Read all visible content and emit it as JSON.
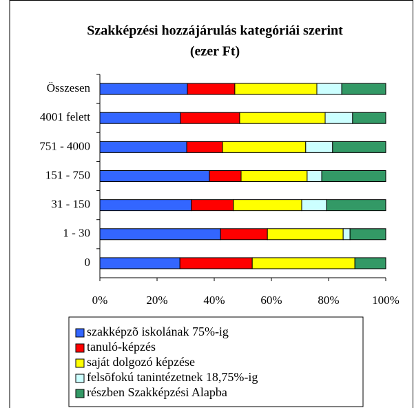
{
  "chart_data": {
    "type": "stacked_bar_horizontal",
    "title": "Szakképzési hozzájárulás kategóriái szerint",
    "subtitle": "(ezer Ft)",
    "categories": [
      "Összesen",
      "4001 felett",
      "751 - 4000",
      "151 - 750",
      "31 - 150",
      "1 - 30",
      "0"
    ],
    "series": [
      {
        "name": "szakképzõ iskolának 75%-ig",
        "color": "#3366ff",
        "values": [
          30.6,
          28.2,
          30.4,
          38.3,
          32.0,
          42.2,
          28.0
        ]
      },
      {
        "name": "tanuló-képzés",
        "color": "#ff0000",
        "values": [
          16.6,
          20.7,
          12.5,
          11.1,
          14.7,
          16.4,
          25.3
        ]
      },
      {
        "name": "saját dolgozó képzése",
        "color": "#ffff00",
        "values": [
          28.7,
          29.9,
          29.1,
          23.1,
          23.9,
          26.5,
          35.9
        ]
      },
      {
        "name": "felsõfokú tanintézetnek 18,75%-ig",
        "color": "#ccffff",
        "values": [
          8.7,
          9.6,
          9.4,
          5.1,
          8.7,
          2.4,
          0
        ]
      },
      {
        "name": "részben Szakképzési Alapba",
        "color": "#339966",
        "values": [
          15.4,
          11.6,
          18.6,
          22.4,
          20.7,
          12.5,
          10.8
        ]
      }
    ],
    "xlim": [
      0,
      100
    ],
    "xticks": [
      {
        "value": 0,
        "label": "0%"
      },
      {
        "value": 20,
        "label": "20%"
      },
      {
        "value": 40,
        "label": "40%"
      },
      {
        "value": 60,
        "label": "60%"
      },
      {
        "value": 80,
        "label": "80%"
      },
      {
        "value": 100,
        "label": "100%"
      }
    ]
  }
}
